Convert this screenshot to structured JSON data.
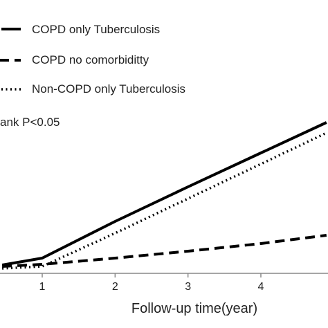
{
  "chart_data": {
    "type": "line",
    "xlabel": "Follow-up time(year)",
    "ylabel": "",
    "x_ticks": [
      1,
      2,
      3,
      4
    ],
    "annotation": "ank P<0.05",
    "legend_position": "top-left",
    "grid": false,
    "colors": {
      "line": "#000000",
      "text": "#222222",
      "axis": "#888888",
      "background": "#ffffff"
    },
    "series": [
      {
        "name": "COPD only Tuberculosis",
        "style": "solid",
        "x": [
          0.45,
          1,
          2,
          3,
          4,
          4.9
        ],
        "y": [
          0.02,
          0.12,
          0.65,
          1.15,
          1.64,
          2.08
        ]
      },
      {
        "name": "COPD no comorbiditty",
        "style": "dashed",
        "x": [
          0.45,
          1,
          2,
          3,
          4,
          4.9
        ],
        "y": [
          0.0,
          0.03,
          0.12,
          0.22,
          0.33,
          0.45
        ]
      },
      {
        "name": "Non-COPD only Tuberculosis",
        "style": "dotted",
        "x": [
          0.45,
          1,
          2,
          3,
          4,
          4.9
        ],
        "y": [
          -0.03,
          0.0,
          0.48,
          0.98,
          1.48,
          1.93
        ]
      }
    ]
  }
}
